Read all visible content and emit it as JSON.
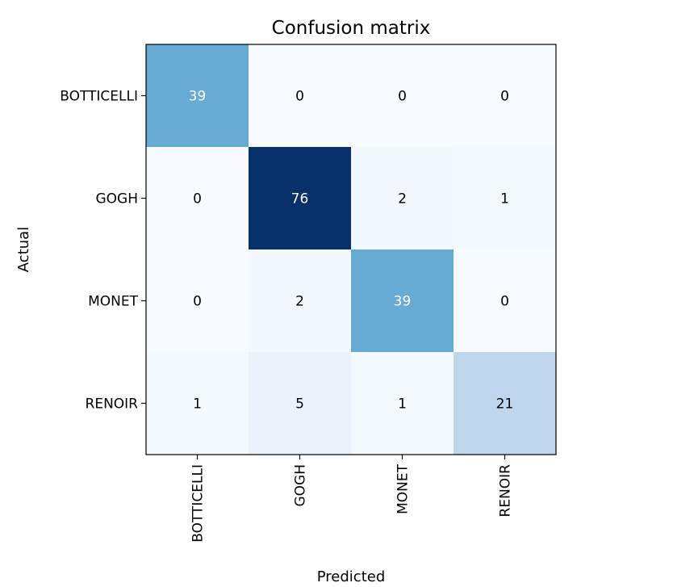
{
  "chart_data": {
    "type": "heatmap",
    "title": "Confusion matrix",
    "xlabel": "Predicted",
    "ylabel": "Actual",
    "x_categories": [
      "BOTTICELLI",
      "GOGH",
      "MONET",
      "RENOIR"
    ],
    "y_categories": [
      "BOTTICELLI",
      "GOGH",
      "MONET",
      "RENOIR"
    ],
    "values": [
      [
        39,
        0,
        0,
        0
      ],
      [
        0,
        76,
        2,
        1
      ],
      [
        0,
        2,
        39,
        0
      ],
      [
        1,
        5,
        1,
        21
      ]
    ],
    "colormap": "Blues",
    "color_range": [
      0,
      76
    ],
    "grid": false,
    "colors": {
      "low": "#f7fbff",
      "mid": "#6baed6",
      "high": "#08306b",
      "text_dark": "#000000",
      "text_light": "#ffffff"
    }
  }
}
